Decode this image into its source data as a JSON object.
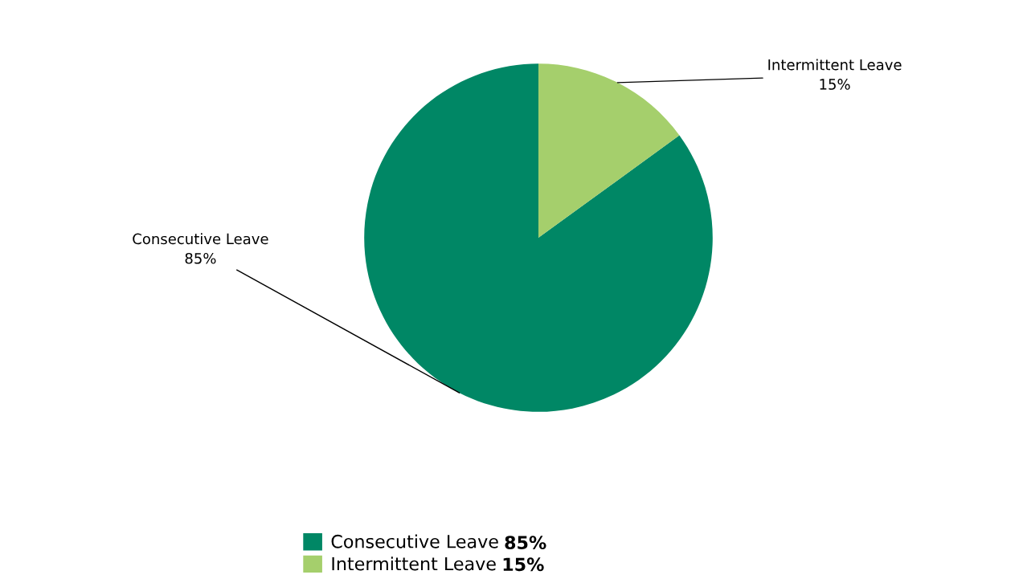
{
  "chart_data": {
    "type": "pie",
    "categories": [
      "Consecutive Leave",
      "Intermittent Leave"
    ],
    "values": [
      85,
      15
    ],
    "colors": [
      "#008765",
      "#a5cf6c"
    ],
    "value_labels": [
      "85%",
      "15%"
    ],
    "legend": "bottom"
  }
}
